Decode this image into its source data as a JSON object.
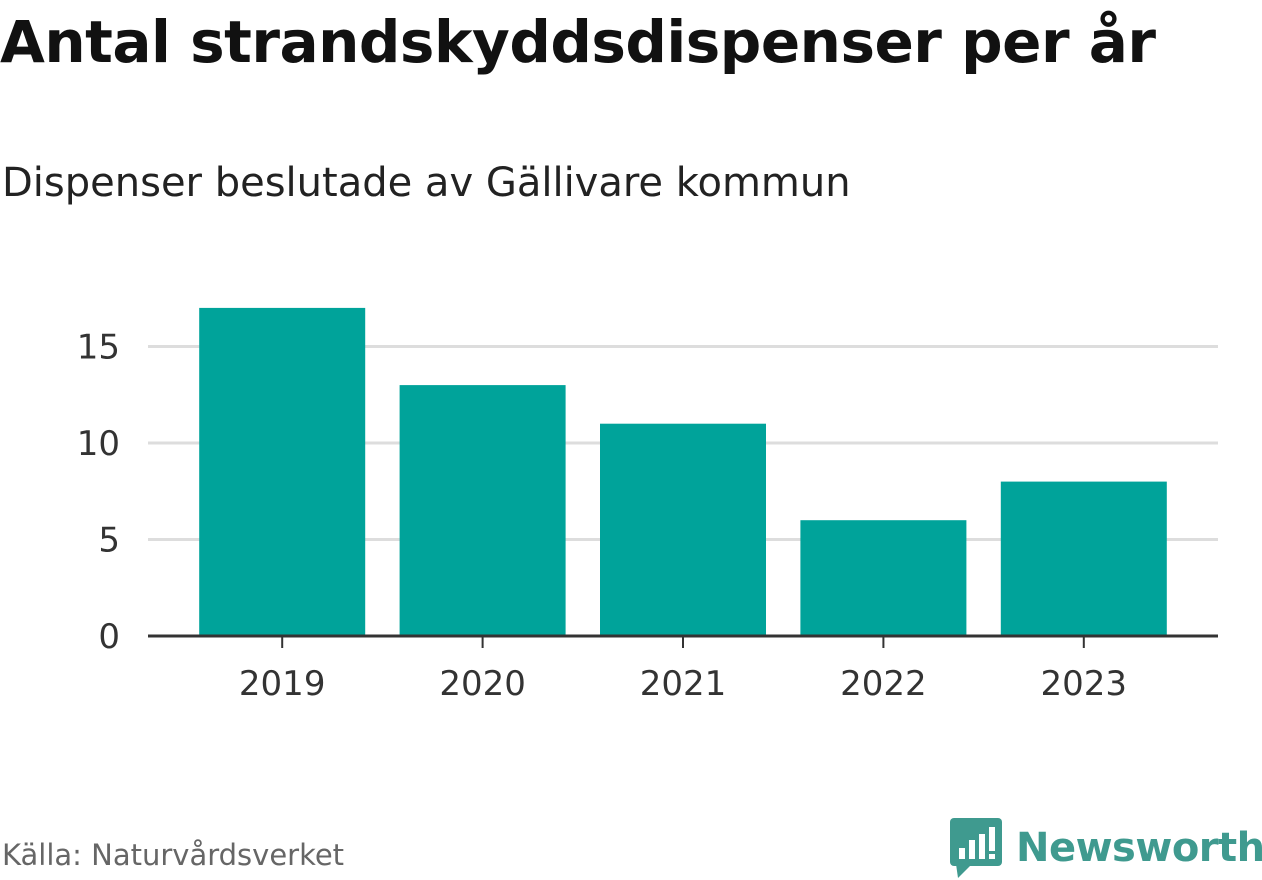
{
  "header": {
    "title": "Antal strandskyddsdispenser per år",
    "subtitle": "Dispenser beslutade av Gällivare kommun"
  },
  "footer": {
    "source": "Källa: Naturvårdsverket",
    "brand": "Newsworthy",
    "brand_icon": "newsworthy-logo-icon"
  },
  "colors": {
    "bar": "#00a39a",
    "grid": "#dddddd",
    "axis": "#333333",
    "tick_text": "#333333",
    "brand": "#3f9a8f"
  },
  "chart_data": {
    "type": "bar",
    "title": "Antal strandskyddsdispenser per år",
    "subtitle": "Dispenser beslutade av Gällivare kommun",
    "categories": [
      "2019",
      "2020",
      "2021",
      "2022",
      "2023"
    ],
    "values": [
      17,
      13,
      11,
      6,
      8
    ],
    "xlabel": "",
    "ylabel": "",
    "ylim": [
      0,
      17
    ],
    "yticks": [
      0,
      5,
      10,
      15
    ],
    "ytick_labels": [
      "0",
      "5",
      "10",
      "15"
    ],
    "grid": true,
    "legend": "none"
  }
}
